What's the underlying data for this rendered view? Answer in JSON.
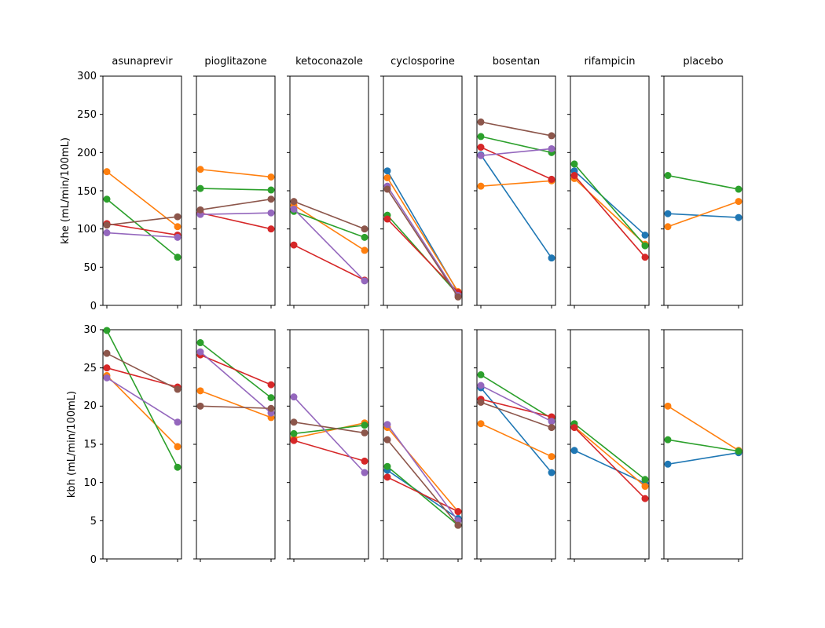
{
  "chart_data": {
    "type": "line",
    "panels": [
      "asunaprevir",
      "pioglitazone",
      "ketoconazole",
      "cyclosporine",
      "bosentan",
      "rifampicin",
      "placebo"
    ],
    "rows": [
      {
        "ylabel": "khe (mL/min/100mL)",
        "ylim": [
          0,
          300
        ],
        "yticks": [
          "0",
          "50",
          "100",
          "150",
          "200",
          "250",
          "300"
        ],
        "panels": [
          [
            {
              "color": "#ff7f0e",
              "values": [
                175,
                103
              ]
            },
            {
              "color": "#2ca02c",
              "values": [
                139,
                63
              ]
            },
            {
              "color": "#d62728",
              "values": [
                107,
                92
              ]
            },
            {
              "color": "#9467bd",
              "values": [
                95,
                89
              ]
            },
            {
              "color": "#8c564b",
              "values": [
                105,
                116
              ]
            }
          ],
          [
            {
              "color": "#ff7f0e",
              "values": [
                178,
                168
              ]
            },
            {
              "color": "#2ca02c",
              "values": [
                153,
                151
              ]
            },
            {
              "color": "#d62728",
              "values": [
                121,
                100
              ]
            },
            {
              "color": "#9467bd",
              "values": [
                119,
                121
              ]
            },
            {
              "color": "#8c564b",
              "values": [
                125,
                139
              ]
            }
          ],
          [
            {
              "color": "#ff7f0e",
              "values": [
                131,
                72
              ]
            },
            {
              "color": "#2ca02c",
              "values": [
                123,
                89
              ]
            },
            {
              "color": "#d62728",
              "values": [
                79,
                33
              ]
            },
            {
              "color": "#9467bd",
              "values": [
                126,
                32
              ]
            },
            {
              "color": "#8c564b",
              "values": [
                136,
                100
              ]
            }
          ],
          [
            {
              "color": "#1f77b4",
              "values": [
                176,
                17
              ]
            },
            {
              "color": "#ff7f0e",
              "values": [
                167,
                18
              ]
            },
            {
              "color": "#2ca02c",
              "values": [
                118,
                14
              ]
            },
            {
              "color": "#d62728",
              "values": [
                113,
                17
              ]
            },
            {
              "color": "#9467bd",
              "values": [
                156,
                13
              ]
            },
            {
              "color": "#8c564b",
              "values": [
                152,
                11
              ]
            }
          ],
          [
            {
              "color": "#1f77b4",
              "values": [
                197,
                62
              ]
            },
            {
              "color": "#ff7f0e",
              "values": [
                156,
                163
              ]
            },
            {
              "color": "#2ca02c",
              "values": [
                221,
                200
              ]
            },
            {
              "color": "#d62728",
              "values": [
                207,
                165
              ]
            },
            {
              "color": "#9467bd",
              "values": [
                196,
                205
              ]
            },
            {
              "color": "#8c564b",
              "values": [
                240,
                222
              ]
            }
          ],
          [
            {
              "color": "#1f77b4",
              "values": [
                176,
                92
              ]
            },
            {
              "color": "#ff7f0e",
              "values": [
                166,
                80
              ]
            },
            {
              "color": "#2ca02c",
              "values": [
                185,
                78
              ]
            },
            {
              "color": "#d62728",
              "values": [
                170,
                63
              ]
            }
          ],
          [
            {
              "color": "#1f77b4",
              "values": [
                120,
                115
              ]
            },
            {
              "color": "#ff7f0e",
              "values": [
                103,
                136
              ]
            },
            {
              "color": "#2ca02c",
              "values": [
                170,
                152
              ]
            }
          ]
        ]
      },
      {
        "ylabel": "kbh (mL/min/100mL)",
        "ylim": [
          0,
          30
        ],
        "yticks": [
          "0",
          "5",
          "10",
          "15",
          "20",
          "25",
          "30"
        ],
        "panels": [
          [
            {
              "color": "#ff7f0e",
              "values": [
                24.0,
                14.7
              ]
            },
            {
              "color": "#2ca02c",
              "values": [
                29.9,
                12.0
              ]
            },
            {
              "color": "#d62728",
              "values": [
                25.0,
                22.5
              ]
            },
            {
              "color": "#9467bd",
              "values": [
                23.7,
                17.9
              ]
            },
            {
              "color": "#8c564b",
              "values": [
                26.9,
                22.2
              ]
            }
          ],
          [
            {
              "color": "#ff7f0e",
              "values": [
                22.0,
                18.5
              ]
            },
            {
              "color": "#2ca02c",
              "values": [
                28.3,
                21.1
              ]
            },
            {
              "color": "#d62728",
              "values": [
                26.7,
                22.8
              ]
            },
            {
              "color": "#9467bd",
              "values": [
                27.1,
                19.1
              ]
            },
            {
              "color": "#8c564b",
              "values": [
                20.0,
                19.7
              ]
            }
          ],
          [
            {
              "color": "#ff7f0e",
              "values": [
                15.8,
                17.8
              ]
            },
            {
              "color": "#2ca02c",
              "values": [
                16.4,
                17.5
              ]
            },
            {
              "color": "#d62728",
              "values": [
                15.5,
                12.8
              ]
            },
            {
              "color": "#9467bd",
              "values": [
                21.2,
                11.3
              ]
            },
            {
              "color": "#8c564b",
              "values": [
                17.9,
                16.5
              ]
            }
          ],
          [
            {
              "color": "#1f77b4",
              "values": [
                11.6,
                5.3
              ]
            },
            {
              "color": "#ff7f0e",
              "values": [
                17.2,
                6.2
              ]
            },
            {
              "color": "#2ca02c",
              "values": [
                12.1,
                4.4
              ]
            },
            {
              "color": "#d62728",
              "values": [
                10.7,
                6.2
              ]
            },
            {
              "color": "#9467bd",
              "values": [
                17.6,
                5.0
              ]
            },
            {
              "color": "#8c564b",
              "values": [
                15.6,
                4.4
              ]
            }
          ],
          [
            {
              "color": "#1f77b4",
              "values": [
                22.4,
                11.3
              ]
            },
            {
              "color": "#ff7f0e",
              "values": [
                17.7,
                13.4
              ]
            },
            {
              "color": "#2ca02c",
              "values": [
                24.1,
                18.4
              ]
            },
            {
              "color": "#d62728",
              "values": [
                20.9,
                18.6
              ]
            },
            {
              "color": "#9467bd",
              "values": [
                22.7,
                18.0
              ]
            },
            {
              "color": "#8c564b",
              "values": [
                20.5,
                17.2
              ]
            }
          ],
          [
            {
              "color": "#1f77b4",
              "values": [
                14.2,
                9.9
              ]
            },
            {
              "color": "#ff7f0e",
              "values": [
                17.3,
                9.5
              ]
            },
            {
              "color": "#2ca02c",
              "values": [
                17.7,
                10.4
              ]
            },
            {
              "color": "#d62728",
              "values": [
                17.2,
                7.9
              ]
            }
          ],
          [
            {
              "color": "#1f77b4",
              "values": [
                12.4,
                13.9
              ]
            },
            {
              "color": "#ff7f0e",
              "values": [
                20.0,
                14.2
              ]
            },
            {
              "color": "#2ca02c",
              "values": [
                15.6,
                14.1
              ]
            }
          ]
        ]
      }
    ]
  }
}
